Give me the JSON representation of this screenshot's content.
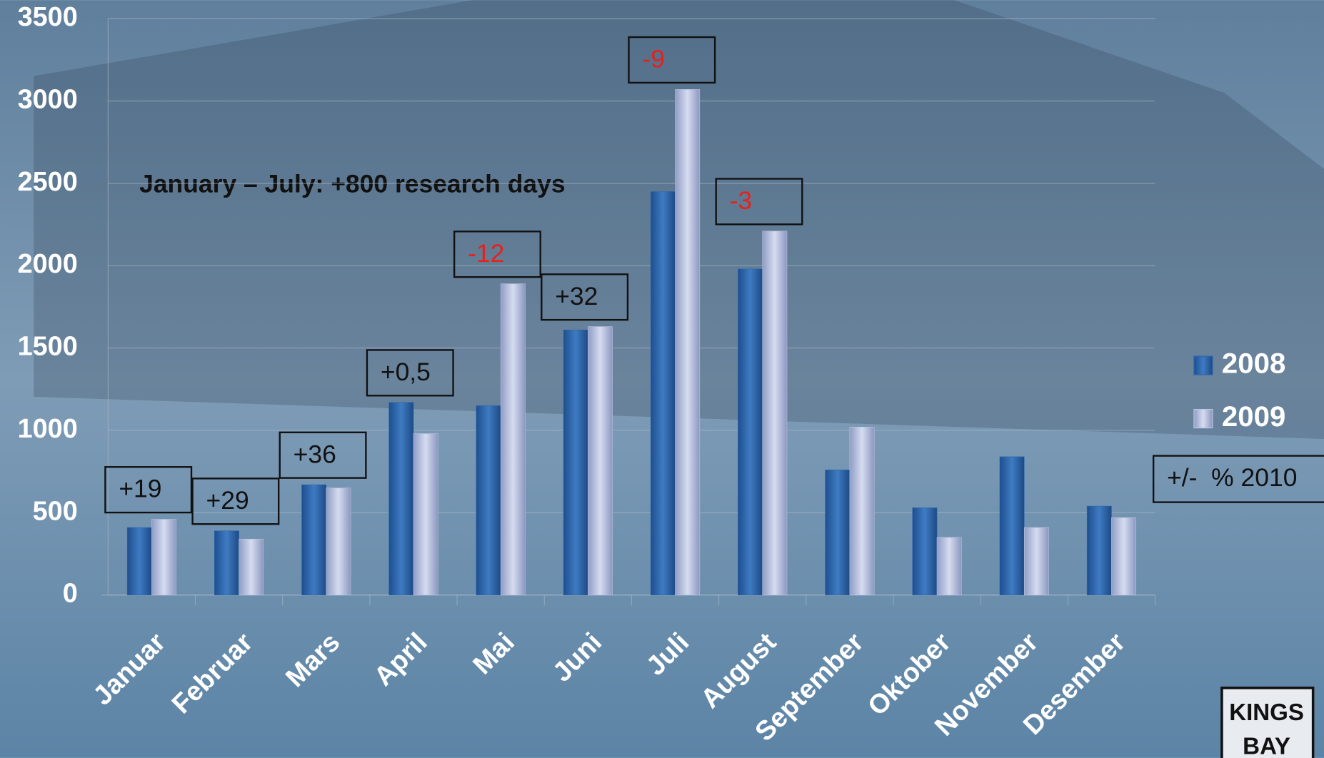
{
  "chart_data": {
    "type": "bar",
    "categories": [
      "Januar",
      "Februar",
      "Mars",
      "April",
      "Mai",
      "Juni",
      "Juli",
      "August",
      "September",
      "Oktober",
      "November",
      "Desember"
    ],
    "series": [
      {
        "name": "2008",
        "color": "#2f67ad",
        "values": [
          410,
          390,
          670,
          1170,
          1150,
          1610,
          2450,
          1980,
          760,
          530,
          840,
          540
        ]
      },
      {
        "name": "2009",
        "color": "#b9c3e2",
        "values": [
          460,
          340,
          650,
          980,
          1890,
          1630,
          3070,
          2210,
          1020,
          350,
          410,
          470
        ]
      }
    ],
    "ylim": [
      0,
      3500
    ],
    "yticks": [
      0,
      500,
      1000,
      1500,
      2000,
      2500,
      3000,
      3500
    ],
    "grid": true,
    "annotation": "January – July: +800 research days",
    "change_legend": "+/-  % 2010",
    "change_labels": [
      {
        "text": "+19",
        "color": "#111111"
      },
      {
        "text": "+29",
        "color": "#111111"
      },
      {
        "text": "+36",
        "color": "#111111"
      },
      {
        "text": "+0,5",
        "color": "#111111"
      },
      {
        "text": "-12",
        "color": "#e8201a"
      },
      {
        "text": "+32",
        "color": "#111111"
      },
      {
        "text": "-9",
        "color": "#e8201a"
      },
      {
        "text": "-3",
        "color": "#e8201a"
      },
      null,
      null,
      null,
      null
    ],
    "logo": [
      "KINGS",
      "BAY"
    ]
  }
}
